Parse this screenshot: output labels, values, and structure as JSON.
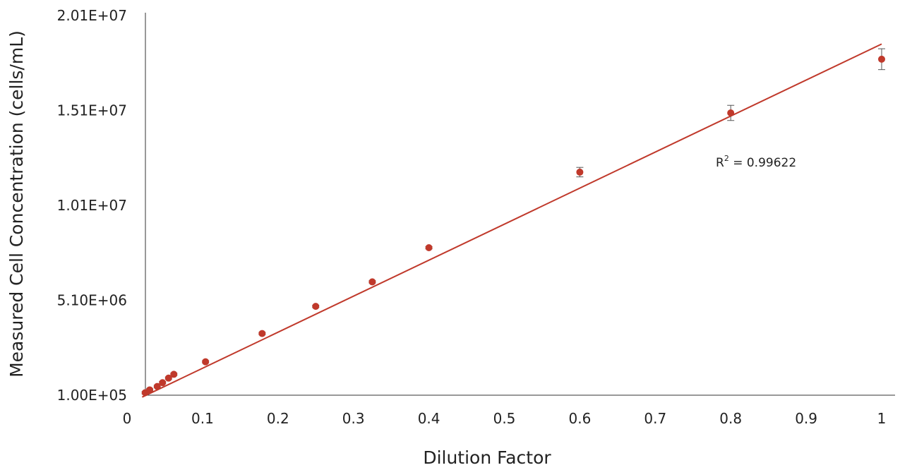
{
  "chart_data": {
    "type": "scatter",
    "xlabel": "Dilution Factor",
    "ylabel": "Measured Cell Concentration (cells/mL)",
    "xlim": [
      0,
      1
    ],
    "ylim": [
      100000,
      20100000
    ],
    "x_ticks": [
      "0",
      "0.1",
      "0.2",
      "0.3",
      "0.4",
      "0.5",
      "0.6",
      "0.7",
      "0.8",
      "0.9",
      "1"
    ],
    "y_ticks": [
      "1.00E+05",
      "5.10E+06",
      "1.01E+07",
      "1.51E+07",
      "2.01E+07"
    ],
    "grid": false,
    "annotation": {
      "text": "R",
      "superscript": "2",
      "suffix": " = 0.99622"
    },
    "series": [
      {
        "marker_color": "#c0392b",
        "points": [
          {
            "x": 0.024,
            "y": 230000,
            "err": 60000
          },
          {
            "x": 0.03,
            "y": 380000,
            "err": 60000
          },
          {
            "x": 0.04,
            "y": 560000,
            "err": 60000
          },
          {
            "x": 0.047,
            "y": 760000,
            "err": 60000
          },
          {
            "x": 0.055,
            "y": 1000000,
            "err": 60000
          },
          {
            "x": 0.062,
            "y": 1200000,
            "err": 60000
          },
          {
            "x": 0.104,
            "y": 1860000,
            "err": 60000
          },
          {
            "x": 0.179,
            "y": 3350000,
            "err": 60000
          },
          {
            "x": 0.25,
            "y": 4780000,
            "err": 60000
          },
          {
            "x": 0.325,
            "y": 6070000,
            "err": 60000
          },
          {
            "x": 0.4,
            "y": 7870000,
            "err": 60000
          },
          {
            "x": 0.6,
            "y": 11850000,
            "err": 250000
          },
          {
            "x": 0.8,
            "y": 14970000,
            "err": 400000
          },
          {
            "x": 1,
            "y": 17800000,
            "err": 550000
          }
        ]
      }
    ],
    "trendline": {
      "type": "linear",
      "color": "#c0392b",
      "x": [
        0.02,
        1.0
      ],
      "y": [
        0,
        18600000
      ]
    }
  }
}
